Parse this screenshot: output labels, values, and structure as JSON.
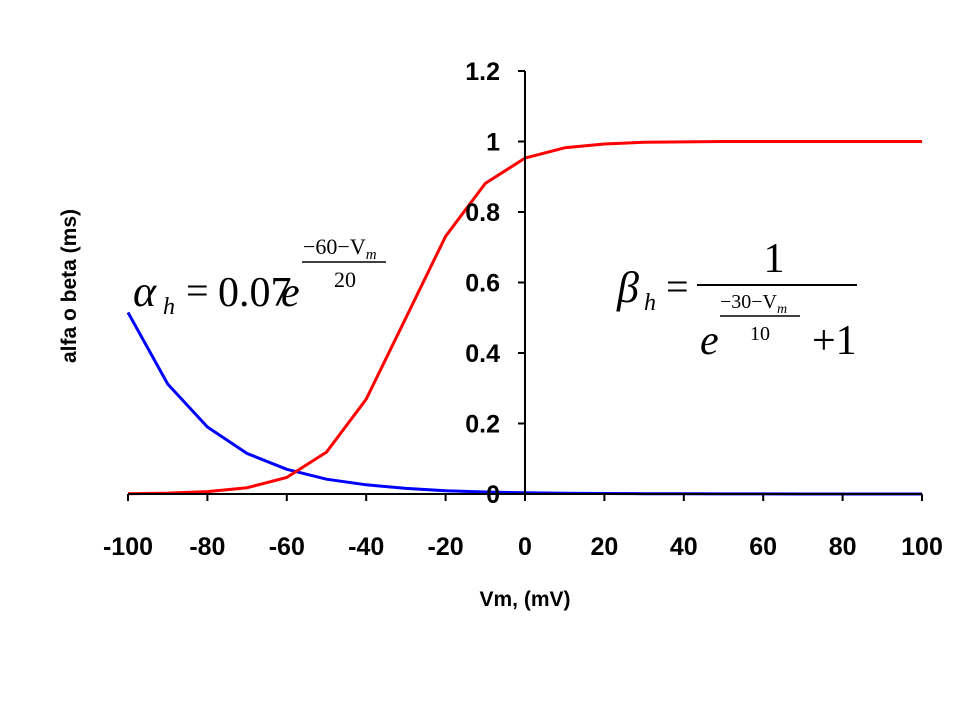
{
  "chart_data": {
    "type": "line",
    "xlabel": "Vm, (mV)",
    "ylabel": "alfa o beta (ms)",
    "xlim": [
      -100,
      100
    ],
    "ylim": [
      0,
      1.2
    ],
    "x_ticks": [
      "-100",
      "-80",
      "-60",
      "-40",
      "-20",
      "0",
      "20",
      "40",
      "60",
      "80",
      "100"
    ],
    "y_ticks": [
      "0",
      "0.2",
      "0.4",
      "0.6",
      "0.8",
      "1",
      "1.2"
    ],
    "grid": false,
    "series": [
      {
        "color": "#0000ff",
        "x": [
          -100,
          -90,
          -80,
          -70,
          -60,
          -50,
          -40,
          -30,
          -20,
          -10,
          0,
          10,
          20,
          30,
          40,
          50,
          60,
          70,
          80,
          90,
          100
        ],
        "y": [
          0.515,
          0.312,
          0.19,
          0.115,
          0.07,
          0.042,
          0.026,
          0.016,
          0.0095,
          0.0058,
          0.0035,
          0.0021,
          0.0013,
          0.0008,
          0.0005,
          0.0003,
          0.0002,
          0.0001,
          0.0001,
          0.0,
          0.0
        ]
      },
      {
        "color": "#ff0000",
        "x": [
          -100,
          -90,
          -80,
          -70,
          -60,
          -50,
          -40,
          -30,
          -20,
          -10,
          0,
          10,
          20,
          30,
          40,
          50,
          60,
          70,
          80,
          90,
          100
        ],
        "y": [
          0.0009,
          0.0025,
          0.0067,
          0.018,
          0.047,
          0.119,
          0.269,
          0.5,
          0.731,
          0.881,
          0.953,
          0.982,
          0.993,
          0.998,
          0.999,
          1.0,
          1.0,
          1.0,
          1.0,
          1.0,
          1.0
        ]
      }
    ],
    "annotations": {
      "alpha": {
        "alpha": "α",
        "sub": "h",
        "eq": "=",
        "coef": "0.07",
        "e": "e",
        "exp_num_a": "−60−V",
        "exp_num_sub": "m",
        "exp_den": "20"
      },
      "beta": {
        "beta": "β",
        "sub": "h",
        "eq": "=",
        "num": "1",
        "e": "e",
        "exp_num_a": "−30−V",
        "exp_num_sub": "m",
        "exp_den": "10",
        "plus": "+1"
      }
    }
  }
}
